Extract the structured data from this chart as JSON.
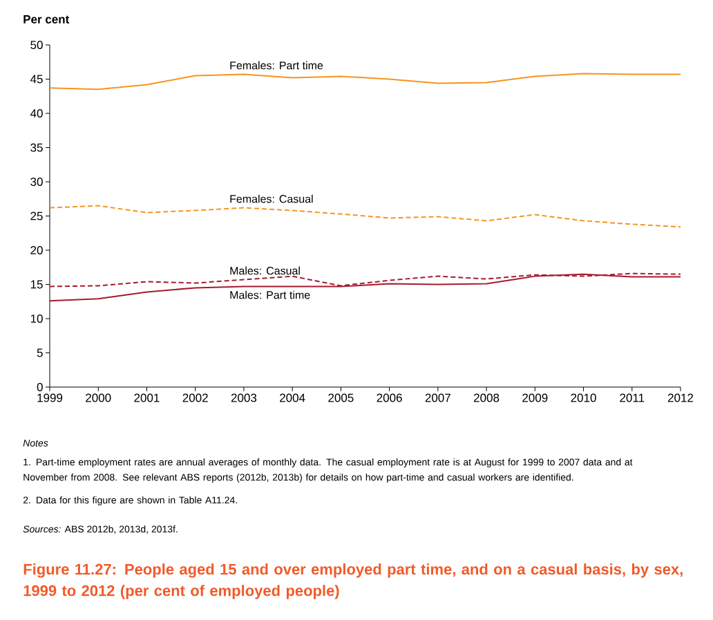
{
  "chart_data": {
    "type": "line",
    "title": "Figure 11.27: People aged 15 and over employed part time, and on a casual basis, by sex, 1999 to 2012 (per cent of employed people)",
    "ylabel": "Per cent",
    "x": [
      1999,
      2000,
      2001,
      2002,
      2003,
      2004,
      2005,
      2006,
      2007,
      2008,
      2009,
      2010,
      2011,
      2012
    ],
    "series": [
      {
        "name": "Females: Part time",
        "color": "#f7941d",
        "line_style": "solid",
        "values": [
          43.7,
          43.5,
          44.2,
          45.5,
          45.7,
          45.2,
          45.4,
          45.0,
          44.4,
          44.5,
          45.4,
          45.8,
          45.7,
          45.7
        ]
      },
      {
        "name": "Females: Casual",
        "color": "#f7941d",
        "line_style": "dashed",
        "values": [
          26.2,
          26.5,
          25.5,
          25.8,
          26.2,
          25.8,
          25.3,
          24.7,
          24.9,
          24.3,
          25.2,
          24.3,
          23.8,
          23.4
        ]
      },
      {
        "name": "Males: Casual",
        "color": "#a6192e",
        "line_style": "dashed",
        "values": [
          14.7,
          14.8,
          15.4,
          15.2,
          15.7,
          16.2,
          14.8,
          15.6,
          16.2,
          15.8,
          16.4,
          16.2,
          16.6,
          16.5
        ]
      },
      {
        "name": "Males: Part time",
        "color": "#a6192e",
        "line_style": "solid",
        "values": [
          12.6,
          12.9,
          13.9,
          14.5,
          14.7,
          14.7,
          14.7,
          15.1,
          15.0,
          15.1,
          16.2,
          16.5,
          16.1,
          16.1
        ]
      }
    ],
    "xlim": [
      1999,
      2012
    ],
    "xticks": [
      1999,
      2000,
      2001,
      2002,
      2003,
      2004,
      2005,
      2006,
      2007,
      2008,
      2009,
      2010,
      2011,
      2012
    ],
    "ylim": [
      0,
      50
    ],
    "yticks": [
      0,
      5,
      10,
      15,
      20,
      25,
      30,
      35,
      40,
      45,
      50
    ],
    "grid": false,
    "marker": "none",
    "annotations": [
      "Notes",
      "1. Part-time employment rates are annual averages of monthly data. The casual employment rate is at August for 1999 to 2007 data and at November from 2008. See relevant ABS reports (2012b, 2013b) for details on how part-time and casual workers are identified.",
      "2. Data for this figure are shown in Table A11.24.",
      "*Sources:* ABS 2012b, 2013d, 2013f."
    ]
  }
}
